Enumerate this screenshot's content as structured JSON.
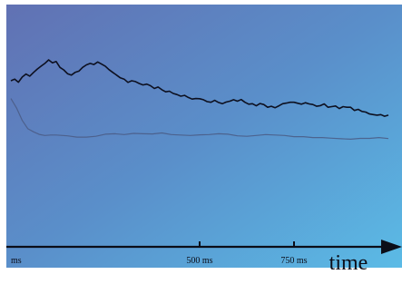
{
  "chart_data": {
    "type": "line",
    "xlabel": "time",
    "xlim": [
      0,
      1000
    ],
    "ylim": [
      0,
      1
    ],
    "tick_labels": [
      {
        "x": 0,
        "label": "ms"
      },
      {
        "x": 500,
        "label": "500 ms"
      },
      {
        "x": 750,
        "label": "750 ms"
      }
    ],
    "grid": false,
    "series": [
      {
        "color": "#0d1020",
        "values": [
          [
            0,
            0.7
          ],
          [
            10,
            0.708
          ],
          [
            20,
            0.693
          ],
          [
            30,
            0.718
          ],
          [
            40,
            0.732
          ],
          [
            50,
            0.722
          ],
          [
            60,
            0.74
          ],
          [
            70,
            0.756
          ],
          [
            80,
            0.77
          ],
          [
            90,
            0.783
          ],
          [
            100,
            0.8
          ],
          [
            110,
            0.786
          ],
          [
            120,
            0.792
          ],
          [
            130,
            0.764
          ],
          [
            140,
            0.752
          ],
          [
            150,
            0.734
          ],
          [
            160,
            0.727
          ],
          [
            170,
            0.74
          ],
          [
            180,
            0.746
          ],
          [
            190,
            0.764
          ],
          [
            200,
            0.776
          ],
          [
            210,
            0.783
          ],
          [
            220,
            0.778
          ],
          [
            230,
            0.79
          ],
          [
            240,
            0.78
          ],
          [
            250,
            0.77
          ],
          [
            260,
            0.753
          ],
          [
            270,
            0.74
          ],
          [
            280,
            0.727
          ],
          [
            290,
            0.714
          ],
          [
            300,
            0.708
          ],
          [
            310,
            0.692
          ],
          [
            320,
            0.7
          ],
          [
            330,
            0.696
          ],
          [
            340,
            0.687
          ],
          [
            350,
            0.68
          ],
          [
            360,
            0.684
          ],
          [
            370,
            0.676
          ],
          [
            380,
            0.663
          ],
          [
            390,
            0.67
          ],
          [
            400,
            0.657
          ],
          [
            410,
            0.647
          ],
          [
            420,
            0.65
          ],
          [
            430,
            0.639
          ],
          [
            440,
            0.634
          ],
          [
            450,
            0.626
          ],
          [
            460,
            0.63
          ],
          [
            470,
            0.62
          ],
          [
            480,
            0.612
          ],
          [
            490,
            0.615
          ],
          [
            500,
            0.614
          ],
          [
            510,
            0.609
          ],
          [
            520,
            0.6
          ],
          [
            530,
            0.597
          ],
          [
            540,
            0.606
          ],
          [
            550,
            0.596
          ],
          [
            560,
            0.59
          ],
          [
            570,
            0.598
          ],
          [
            580,
            0.602
          ],
          [
            590,
            0.609
          ],
          [
            600,
            0.602
          ],
          [
            610,
            0.61
          ],
          [
            620,
            0.597
          ],
          [
            630,
            0.588
          ],
          [
            640,
            0.59
          ],
          [
            650,
            0.58
          ],
          [
            660,
            0.591
          ],
          [
            670,
            0.586
          ],
          [
            680,
            0.573
          ],
          [
            690,
            0.578
          ],
          [
            700,
            0.571
          ],
          [
            710,
            0.58
          ],
          [
            720,
            0.59
          ],
          [
            730,
            0.593
          ],
          [
            740,
            0.597
          ],
          [
            750,
            0.597
          ],
          [
            760,
            0.592
          ],
          [
            770,
            0.588
          ],
          [
            780,
            0.595
          ],
          [
            790,
            0.589
          ],
          [
            800,
            0.586
          ],
          [
            810,
            0.578
          ],
          [
            820,
            0.581
          ],
          [
            830,
            0.589
          ],
          [
            840,
            0.573
          ],
          [
            850,
            0.576
          ],
          [
            860,
            0.579
          ],
          [
            870,
            0.567
          ],
          [
            880,
            0.576
          ],
          [
            890,
            0.573
          ],
          [
            900,
            0.573
          ],
          [
            910,
            0.558
          ],
          [
            920,
            0.563
          ],
          [
            930,
            0.553
          ],
          [
            940,
            0.55
          ],
          [
            950,
            0.541
          ],
          [
            960,
            0.538
          ],
          [
            970,
            0.535
          ],
          [
            980,
            0.538
          ],
          [
            990,
            0.53
          ],
          [
            1000,
            0.535
          ]
        ]
      },
      {
        "color": "#4a5a84",
        "values": [
          [
            0,
            0.615
          ],
          [
            15,
            0.57
          ],
          [
            30,
            0.51
          ],
          [
            45,
            0.47
          ],
          [
            60,
            0.455
          ],
          [
            75,
            0.443
          ],
          [
            90,
            0.438
          ],
          [
            105,
            0.44
          ],
          [
            120,
            0.44
          ],
          [
            150,
            0.436
          ],
          [
            175,
            0.43
          ],
          [
            200,
            0.43
          ],
          [
            225,
            0.434
          ],
          [
            250,
            0.444
          ],
          [
            275,
            0.446
          ],
          [
            300,
            0.442
          ],
          [
            325,
            0.448
          ],
          [
            350,
            0.446
          ],
          [
            375,
            0.445
          ],
          [
            400,
            0.45
          ],
          [
            425,
            0.442
          ],
          [
            450,
            0.44
          ],
          [
            475,
            0.438
          ],
          [
            500,
            0.441
          ],
          [
            525,
            0.442
          ],
          [
            550,
            0.446
          ],
          [
            575,
            0.444
          ],
          [
            600,
            0.436
          ],
          [
            625,
            0.434
          ],
          [
            650,
            0.438
          ],
          [
            675,
            0.442
          ],
          [
            700,
            0.44
          ],
          [
            725,
            0.438
          ],
          [
            750,
            0.432
          ],
          [
            775,
            0.432
          ],
          [
            800,
            0.428
          ],
          [
            825,
            0.428
          ],
          [
            850,
            0.425
          ],
          [
            875,
            0.422
          ],
          [
            900,
            0.42
          ],
          [
            925,
            0.424
          ],
          [
            950,
            0.424
          ],
          [
            975,
            0.428
          ],
          [
            1000,
            0.423
          ]
        ]
      }
    ]
  }
}
